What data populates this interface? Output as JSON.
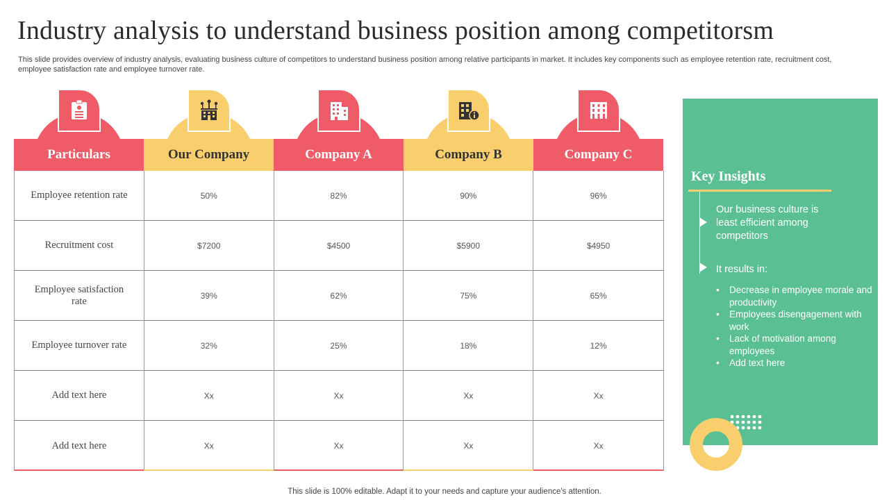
{
  "title": "Industry analysis to understand business position among competitorsm",
  "subtitle": "This slide provides overview of industry analysis, evaluating business culture of competitors to understand business position among relative participants in market. It includes key components such as employee retention rate, recruitment cost, employee satisfaction rate and employee turnover rate.",
  "headers": [
    {
      "label": "Particulars",
      "icon": "id-card-icon",
      "color": "#ef5b67"
    },
    {
      "label": "Our Company",
      "icon": "network-building-icon",
      "color": "#f8cf6c"
    },
    {
      "label": "Company A",
      "icon": "office-building-icon",
      "color": "#ef5b67"
    },
    {
      "label": "Company B",
      "icon": "building-info-icon",
      "color": "#f8cf6c"
    },
    {
      "label": "Company C",
      "icon": "apartment-building-icon",
      "color": "#ef5b67"
    }
  ],
  "rows": [
    {
      "label": "Employee retention rate",
      "values": [
        "50%",
        "82%",
        "90%",
        "96%"
      ]
    },
    {
      "label": "Recruitment cost",
      "values": [
        "$7200",
        "$4500",
        "$5900",
        "$4950"
      ]
    },
    {
      "label": "Employee satisfaction rate",
      "values": [
        "39%",
        "62%",
        "75%",
        "65%"
      ]
    },
    {
      "label": "Employee turnover rate",
      "values": [
        "32%",
        "25%",
        "18%",
        "12%"
      ]
    },
    {
      "label": "Add text here",
      "values": [
        "Xx",
        "Xx",
        "Xx",
        "Xx"
      ]
    },
    {
      "label": "Add text here",
      "values": [
        "Xx",
        "Xx",
        "Xx",
        "Xx"
      ]
    }
  ],
  "insights": {
    "title": "Key Insights",
    "point1": "Our business culture is least efficient among competitors",
    "point2": "It results in:",
    "bullets": [
      "Decrease in employee morale and productivity",
      "Employees disengagement with work",
      "Lack of motivation among employees",
      "Add text here"
    ],
    "panel_color": "#5bbf94",
    "accent_color": "#f8cf6c"
  },
  "footer": "This slide is 100% editable. Adapt it to your needs and capture your audience's attention."
}
